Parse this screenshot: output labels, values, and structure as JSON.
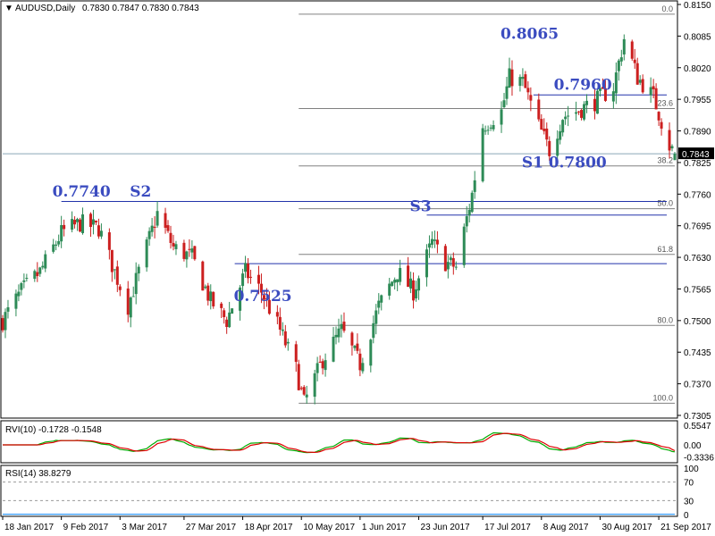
{
  "header": {
    "symbol": "AUDUSD,Daily",
    "ohlc": "0.7830 0.7847 0.7830 0.7843",
    "rvi": "RVI(10) -0.1728 -0.1548",
    "rsi": "RSI(14) 38.8279"
  },
  "colors": {
    "bull": "#2e8b57",
    "bear": "#cc1f1f",
    "annotation": "#3b4cc0",
    "fib_line": "#808080",
    "sr_line": "#2233aa",
    "rvi_main": "#00aa00",
    "rvi_signal": "#dd0000",
    "rsi_line": "#1e90ff"
  },
  "chart_data": [
    {
      "type": "candlestick",
      "symbol": "AUDUSD",
      "timeframe": "Daily",
      "ylim": [
        0.7305,
        0.815
      ],
      "y_ticks": [
        "0.8150",
        "0.8085",
        "0.8020",
        "0.7955",
        "0.7890",
        "0.7825",
        "0.7760",
        "0.7695",
        "0.7630",
        "0.7565",
        "0.7500",
        "0.7435",
        "0.7370",
        "0.7305"
      ],
      "current_price": "0.7843",
      "x_ticks": [
        "18 Jan 2017",
        "9 Feb 2017",
        "3 Mar 2017",
        "27 Mar 2017",
        "18 Apr 2017",
        "10 May 2017",
        "1 Jun 2017",
        "23 Jun 2017",
        "17 Jul 2017",
        "8 Aug 2017",
        "30 Aug 2017",
        "21 Sep 2017"
      ],
      "x_range": [
        "2017-01-18",
        "2017-09-27"
      ],
      "approx_close_path": [
        [
          "2017-01-18",
          0.75
        ],
        [
          "2017-01-25",
          0.756
        ],
        [
          "2017-02-01",
          0.76
        ],
        [
          "2017-02-09",
          0.768
        ],
        [
          "2017-02-16",
          0.77
        ],
        [
          "2017-02-23",
          0.769
        ],
        [
          "2017-03-01",
          0.76
        ],
        [
          "2017-03-06",
          0.753
        ],
        [
          "2017-03-10",
          0.76
        ],
        [
          "2017-03-17",
          0.772
        ],
        [
          "2017-03-23",
          0.765
        ],
        [
          "2017-03-30",
          0.763
        ],
        [
          "2017-04-06",
          0.754
        ],
        [
          "2017-04-12",
          0.75
        ],
        [
          "2017-04-19",
          0.76
        ],
        [
          "2017-04-25",
          0.756
        ],
        [
          "2017-05-02",
          0.748
        ],
        [
          "2017-05-08",
          0.74
        ],
        [
          "2017-05-11",
          0.733
        ],
        [
          "2017-05-18",
          0.742
        ],
        [
          "2017-05-25",
          0.748
        ],
        [
          "2017-06-01",
          0.741
        ],
        [
          "2017-06-08",
          0.753
        ],
        [
          "2017-06-15",
          0.76
        ],
        [
          "2017-06-21",
          0.756
        ],
        [
          "2017-06-28",
          0.766
        ],
        [
          "2017-07-03",
          0.762
        ],
        [
          "2017-07-07",
          0.761
        ],
        [
          "2017-07-13",
          0.776
        ],
        [
          "2017-07-17",
          0.79
        ],
        [
          "2017-07-24",
          0.793
        ],
        [
          "2017-07-27",
          0.8
        ],
        [
          "2017-08-01",
          0.799
        ],
        [
          "2017-08-07",
          0.79
        ],
        [
          "2017-08-11",
          0.785
        ],
        [
          "2017-08-16",
          0.792
        ],
        [
          "2017-08-21",
          0.793
        ],
        [
          "2017-08-28",
          0.795
        ],
        [
          "2017-09-04",
          0.798
        ],
        [
          "2017-09-08",
          0.808
        ],
        [
          "2017-09-13",
          0.8
        ],
        [
          "2017-09-19",
          0.796
        ],
        [
          "2017-09-25",
          0.786
        ],
        [
          "2017-09-27",
          0.7843
        ]
      ],
      "annotations": [
        {
          "text": "0.8065",
          "date": "2017-07-27",
          "price": 0.8065
        },
        {
          "text": "0.7960",
          "date": "2017-08-16",
          "price": 0.796
        },
        {
          "text": "0.7740",
          "date": "2017-02-09",
          "price": 0.774
        },
        {
          "text": "S2",
          "date": "2017-03-10",
          "price": 0.774
        },
        {
          "text": "0.7525",
          "date": "2017-04-18",
          "price": 0.7525
        },
        {
          "text": "S3",
          "date": "2017-06-23",
          "price": 0.771
        },
        {
          "text": "S1",
          "date": "2017-08-04",
          "price": 0.78
        },
        {
          "text": "0.7800",
          "date": "2017-08-14",
          "price": 0.78
        }
      ],
      "support_resistance_lines": [
        {
          "price": 0.7964,
          "from": "2017-08-05",
          "to": "2017-09-24"
        },
        {
          "price": 0.7745,
          "from": "2017-02-09",
          "to": "2017-09-24"
        },
        {
          "price": 0.7717,
          "from": "2017-06-26",
          "to": "2017-09-24"
        },
        {
          "price": 0.7617,
          "from": "2017-04-15",
          "to": "2017-09-24"
        }
      ],
      "fibonacci_levels": [
        {
          "label": "0.0",
          "price": 0.813
        },
        {
          "label": "23.6",
          "price": 0.7936
        },
        {
          "label": "38.2",
          "price": 0.7818
        },
        {
          "label": "50.0",
          "price": 0.773
        },
        {
          "label": "61.8",
          "price": 0.7636
        },
        {
          "label": "80.0",
          "price": 0.749
        },
        {
          "label": "100.0",
          "price": 0.733
        }
      ],
      "fib_range": [
        "2017-05-09",
        "2017-09-27"
      ]
    },
    {
      "type": "line",
      "indicator": "RVI(10)",
      "values": [
        "-0.1728",
        "-0.1548"
      ],
      "y_ticks": [
        "0.5547",
        "0.00",
        "-0.3336"
      ],
      "ylim": [
        -0.45,
        0.6
      ]
    },
    {
      "type": "line",
      "indicator": "RSI(14)",
      "value": "38.8279",
      "y_ticks": [
        "100",
        "70",
        "30",
        "0"
      ],
      "levels": [
        70,
        30
      ],
      "ylim": [
        0,
        100
      ]
    }
  ]
}
